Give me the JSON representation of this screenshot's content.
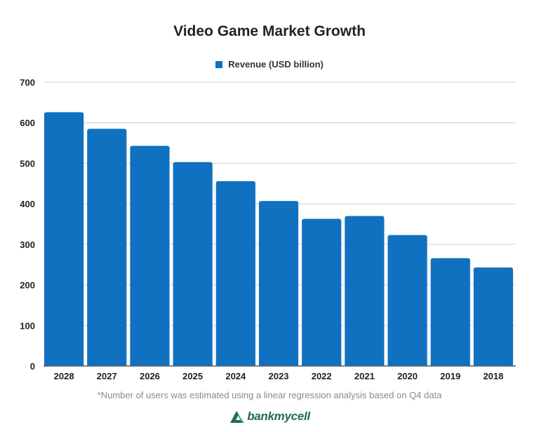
{
  "chart_data": {
    "type": "bar",
    "title": "Video Game Market Growth",
    "categories": [
      "2028",
      "2027",
      "2026",
      "2025",
      "2024",
      "2023",
      "2022",
      "2021",
      "2020",
      "2019",
      "2018"
    ],
    "series": [
      {
        "name": "Revenue (USD billion)",
        "values": [
          626,
          585,
          543,
          503,
          456,
          407,
          363,
          370,
          323,
          266,
          243
        ]
      }
    ],
    "xlabel": "",
    "ylabel": "",
    "ylim": [
      0,
      700
    ],
    "yticks": [
      "0",
      "100",
      "200",
      "300",
      "400",
      "500",
      "600",
      "700"
    ],
    "grid": true,
    "legend": "top-center",
    "bar_color": "#1071c1"
  },
  "footnote": "*Number of users was estimated using a linear regression analysis based on Q4 data",
  "brand": {
    "name": "bankmycell",
    "icon": "bankmycell-logo-icon",
    "color": "#1f6e4f"
  }
}
